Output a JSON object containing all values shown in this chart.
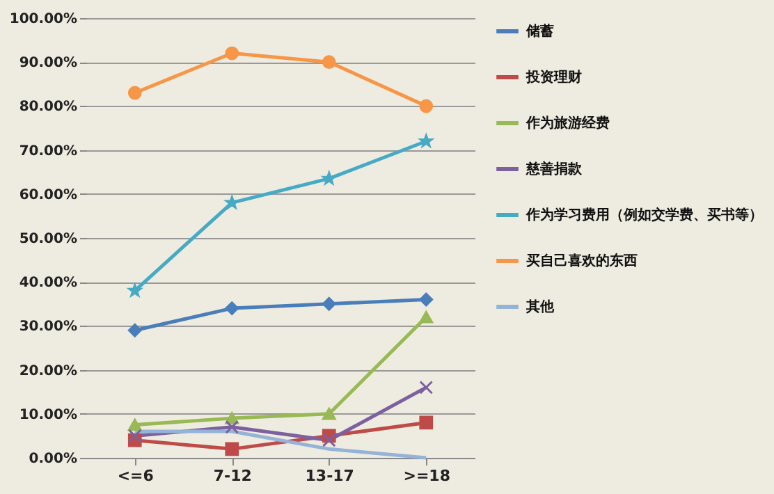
{
  "chart_data": {
    "type": "line",
    "categories": [
      "<=6",
      "7-12",
      "13-17",
      ">=18"
    ],
    "series": [
      {
        "name": "储蓄",
        "color": "#4a7ebb",
        "marker": "diamond",
        "values": [
          29,
          34,
          35,
          36
        ]
      },
      {
        "name": "投资理财",
        "color": "#be4b48",
        "marker": "square",
        "values": [
          4,
          2,
          5,
          8
        ]
      },
      {
        "name": "作为旅游经费",
        "color": "#98b954",
        "marker": "triangle",
        "values": [
          7.5,
          9,
          10,
          32
        ]
      },
      {
        "name": "慈善捐款",
        "color": "#7d60a0",
        "marker": "cross",
        "values": [
          5,
          7,
          4,
          16
        ]
      },
      {
        "name": "作为学习费用（例如交学费、买书等）",
        "color": "#46aac5",
        "marker": "star",
        "values": [
          38,
          58,
          63.5,
          72
        ]
      },
      {
        "name": "买自己喜欢的东西",
        "color": "#f79646",
        "marker": "circle",
        "values": [
          83,
          92,
          90,
          80
        ]
      },
      {
        "name": "其他",
        "color": "#95b3d7",
        "marker": "none",
        "values": [
          6,
          6,
          2,
          0
        ]
      }
    ],
    "ylim": [
      0,
      100
    ],
    "yticks": [
      {
        "value": 0,
        "label": "0.00%"
      },
      {
        "value": 10,
        "label": "10.00%"
      },
      {
        "value": 20,
        "label": "20.00%"
      },
      {
        "value": 30,
        "label": "30.00%"
      },
      {
        "value": 40,
        "label": "40.00%"
      },
      {
        "value": 50,
        "label": "50.00%"
      },
      {
        "value": 60,
        "label": "60.00%"
      },
      {
        "value": 70,
        "label": "70.00%"
      },
      {
        "value": 80,
        "label": "80.00%"
      },
      {
        "value": 90,
        "label": "90.00%"
      },
      {
        "value": 100,
        "label": "100.00%"
      }
    ],
    "grid": "y",
    "legend": "right",
    "line_style": "solid"
  }
}
